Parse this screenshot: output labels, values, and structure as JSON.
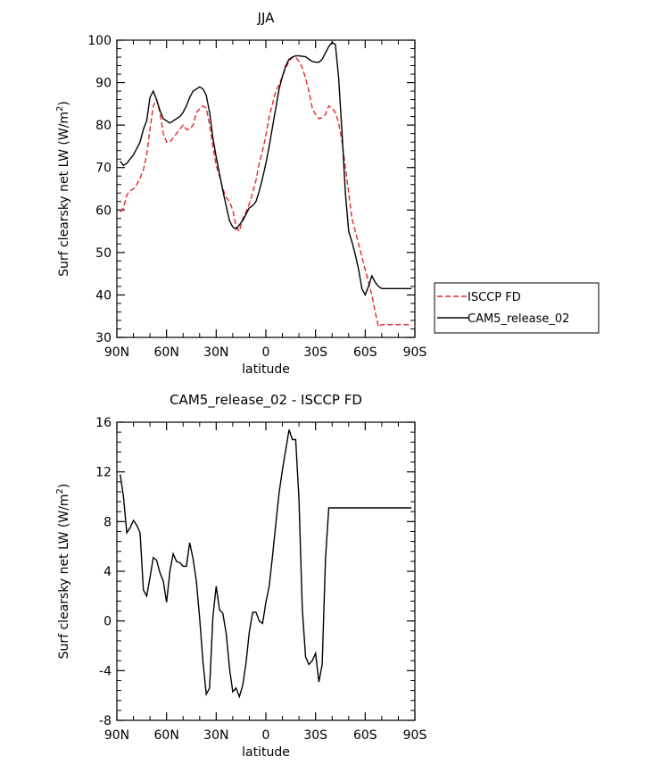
{
  "chart_data": [
    {
      "type": "line",
      "title": "JJA",
      "xlabel": "latitude",
      "ylabel": "Surf clearsky net LW (W/m",
      "ylabel_sup": "2",
      "ylabel_close": ")",
      "xlim": [
        90,
        -90
      ],
      "ylim": [
        30,
        100
      ],
      "xticks": [
        90,
        60,
        30,
        0,
        -30,
        -60,
        -90
      ],
      "xtick_labels": [
        "90N",
        "60N",
        "30N",
        "0",
        "30S",
        "60S",
        "90S"
      ],
      "yticks": [
        30,
        40,
        50,
        60,
        70,
        80,
        90,
        100
      ],
      "ytick_labels": [
        "30",
        "40",
        "50",
        "60",
        "70",
        "80",
        "90",
        "100"
      ],
      "legend": "outside-right",
      "series": [
        {
          "name": "ISCCP FD",
          "color": "#e8282b",
          "dash": "dashed",
          "x": [
            88,
            86,
            84,
            82,
            80,
            78,
            76,
            74,
            72,
            70,
            68,
            66,
            64,
            62,
            60,
            58,
            56,
            54,
            52,
            50,
            48,
            46,
            44,
            42,
            40,
            38,
            36,
            34,
            32,
            30,
            28,
            26,
            24,
            22,
            20,
            18,
            16,
            14,
            12,
            10,
            8,
            6,
            4,
            2,
            0,
            -2,
            -4,
            -6,
            -8,
            -10,
            -12,
            -14,
            -16,
            -18,
            -20,
            -22,
            -24,
            -26,
            -28,
            -30,
            -32,
            -34,
            -36,
            -38,
            -40,
            -42,
            -44,
            -46,
            -48,
            -50,
            -52,
            -54,
            -56,
            -58,
            -60,
            -62,
            -64,
            -66,
            -68,
            -70,
            -72,
            -74,
            -76,
            -78,
            -80,
            -82,
            -84,
            -86,
            -88
          ],
          "y": [
            59.5,
            60.5,
            63.5,
            64.5,
            65.0,
            66.0,
            67.5,
            69.5,
            73.0,
            79.0,
            84.5,
            86.0,
            83.0,
            78.0,
            76.0,
            76.0,
            77.0,
            78.0,
            79.0,
            80.0,
            79.0,
            79.0,
            80.0,
            83.0,
            83.8,
            84.5,
            84.0,
            80.0,
            75.0,
            70.5,
            68.0,
            65.0,
            63.0,
            62.0,
            60.0,
            56.0,
            55.0,
            58.0,
            59.5,
            61.5,
            64.0,
            67.0,
            71.0,
            74.0,
            77.5,
            82.0,
            85.0,
            88.0,
            89.5,
            91.5,
            93.5,
            95.0,
            96.0,
            96.0,
            95.0,
            93.5,
            91.0,
            88.0,
            84.0,
            82.5,
            81.5,
            81.8,
            82.5,
            84.5,
            84.0,
            83.0,
            80.5,
            76.0,
            70.0,
            64.0,
            58.0,
            55.0,
            52.0,
            49.0,
            46.0,
            43.0,
            40.0,
            36.0,
            32.5,
            33.0,
            33.0,
            33.0,
            33.0,
            33.0,
            33.0,
            33.0,
            33.0,
            33.0,
            33.0
          ]
        },
        {
          "name": "CAM5_release_02",
          "color": "#000000",
          "dash": "solid",
          "x": [
            88,
            86,
            84,
            82,
            80,
            78,
            76,
            74,
            72,
            70,
            68,
            66,
            64,
            62,
            60,
            58,
            56,
            54,
            52,
            50,
            48,
            46,
            44,
            42,
            40,
            38,
            36,
            34,
            32,
            30,
            28,
            26,
            24,
            22,
            20,
            18,
            16,
            14,
            12,
            10,
            8,
            6,
            4,
            2,
            0,
            -2,
            -4,
            -6,
            -8,
            -10,
            -12,
            -14,
            -16,
            -18,
            -20,
            -22,
            -24,
            -26,
            -28,
            -30,
            -32,
            -34,
            -36,
            -38,
            -40,
            -42,
            -44,
            -46,
            -48,
            -50,
            -52,
            -54,
            -56,
            -58,
            -60,
            -62,
            -64,
            -66,
            -68,
            -70,
            -72,
            -74,
            -76,
            -78,
            -80,
            -82,
            -84,
            -86,
            -88
          ],
          "y": [
            71.5,
            70.5,
            71.0,
            72.0,
            73.0,
            74.5,
            76.0,
            79.0,
            81.0,
            86.5,
            88.0,
            86.0,
            83.5,
            81.5,
            81.0,
            80.5,
            81.0,
            81.5,
            82.0,
            83.0,
            84.5,
            86.5,
            88.0,
            88.5,
            89.0,
            88.5,
            87.0,
            83.0,
            77.0,
            72.5,
            68.5,
            64.5,
            61.0,
            57.5,
            56.0,
            55.5,
            56.5,
            57.5,
            59.0,
            60.5,
            61.0,
            62.0,
            64.5,
            67.5,
            71.0,
            75.0,
            79.5,
            84.0,
            88.5,
            91.5,
            94.0,
            95.5,
            96.0,
            96.3,
            96.3,
            96.2,
            96.1,
            95.5,
            95.0,
            94.8,
            94.8,
            95.5,
            97.0,
            98.5,
            99.5,
            99.0,
            91.0,
            78.0,
            64.0,
            55.0,
            52.5,
            49.5,
            46.0,
            41.5,
            40.0,
            42.0,
            44.5,
            43.0,
            42.0,
            41.5,
            41.5,
            41.5,
            41.5,
            41.5,
            41.5,
            41.5,
            41.5,
            41.5,
            41.5
          ]
        }
      ]
    },
    {
      "type": "line",
      "title": "CAM5_release_02 - ISCCP FD",
      "xlabel": "latitude",
      "ylabel": "Surf clearsky net LW (W/m",
      "ylabel_sup": "2",
      "ylabel_close": ")",
      "xlim": [
        90,
        -90
      ],
      "ylim": [
        -8,
        16
      ],
      "xticks": [
        90,
        60,
        30,
        0,
        -30,
        -60,
        -90
      ],
      "xtick_labels": [
        "90N",
        "60N",
        "30N",
        "0",
        "30S",
        "60S",
        "90S"
      ],
      "yticks": [
        -8,
        -4,
        0,
        4,
        8,
        12,
        16
      ],
      "ytick_labels": [
        "-8",
        "-4",
        "0",
        "4",
        "8",
        "12",
        "16"
      ],
      "series": [
        {
          "color": "#000000",
          "dash": "solid",
          "x": [
            88,
            86,
            84,
            82,
            80,
            78,
            76,
            74,
            72,
            70,
            68,
            66,
            64,
            62,
            60,
            58,
            56,
            54,
            52,
            50,
            48,
            46,
            44,
            42,
            40,
            38,
            36,
            34,
            32,
            30,
            28,
            26,
            24,
            22,
            20,
            18,
            16,
            14,
            12,
            10,
            8,
            6,
            4,
            2,
            0,
            -2,
            -4,
            -6,
            -8,
            -10,
            -12,
            -14,
            -16,
            -18,
            -20,
            -22,
            -24,
            -26,
            -28,
            -30,
            -32,
            -34,
            -36,
            -38,
            -40,
            -42,
            -44,
            -46,
            -48,
            -50,
            -52,
            -54,
            -56,
            -58,
            -60,
            -62,
            -64,
            -66,
            -68,
            -70,
            -72,
            -74,
            -76,
            -78,
            -80,
            -82,
            -84,
            -86,
            -88
          ],
          "y": [
            11.8,
            10.0,
            7.1,
            7.5,
            8.1,
            7.7,
            7.1,
            2.5,
            2.0,
            3.5,
            5.1,
            4.9,
            3.9,
            3.2,
            1.5,
            4.0,
            5.4,
            4.8,
            4.7,
            4.4,
            4.4,
            6.3,
            5.0,
            3.2,
            0.2,
            -3.3,
            -5.9,
            -5.4,
            0.3,
            2.8,
            0.9,
            0.6,
            -1.0,
            -3.8,
            -5.7,
            -5.4,
            -6.1,
            -5.2,
            -3.4,
            -0.9,
            0.7,
            0.7,
            0.0,
            -0.2,
            1.5,
            2.8,
            5.2,
            7.8,
            10.3,
            12.2,
            13.8,
            15.4,
            14.6,
            14.6,
            9.8,
            1.0,
            -2.9,
            -3.5,
            -3.2,
            -2.6,
            -4.9,
            -3.5,
            5.0,
            9.1,
            9.1,
            9.1,
            9.1,
            9.1,
            9.1,
            9.1,
            9.1,
            9.1,
            9.1,
            9.1,
            9.1,
            9.1,
            9.1,
            9.1,
            9.1,
            9.1,
            9.1,
            9.1,
            9.1,
            9.1,
            9.1,
            9.1,
            9.1,
            9.1,
            9.1
          ]
        }
      ]
    }
  ]
}
